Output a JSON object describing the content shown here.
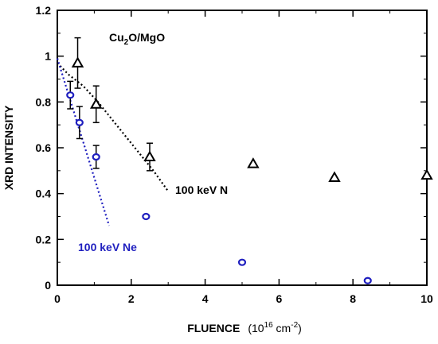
{
  "chart_data": {
    "type": "scatter",
    "title": "",
    "xlabel": "FLUENCE",
    "xlabel_unit_prefix": "(10",
    "xlabel_unit_exp1": "16",
    "xlabel_unit_mid": " cm",
    "xlabel_unit_exp2": "-2",
    "xlabel_unit_suffix": ")",
    "ylabel": "XRD INTENSITY",
    "xlim": [
      0,
      10
    ],
    "ylim": [
      0,
      1.2
    ],
    "x_ticks": [
      "0",
      "2",
      "4",
      "6",
      "8",
      "10"
    ],
    "y_ticks": [
      "0",
      "0.2",
      "0.4",
      "0.6",
      "0.8",
      "1",
      "1.2"
    ],
    "grid": false,
    "sample_label": {
      "main": "Cu",
      "sub": "2",
      "rest": "O/MgO"
    },
    "series": [
      {
        "name": "100 keV N",
        "marker": "triangle",
        "color": "#000000",
        "points": [
          {
            "x": 0.55,
            "y": 0.97,
            "err": 0.11
          },
          {
            "x": 1.05,
            "y": 0.79,
            "err": 0.08
          },
          {
            "x": 2.5,
            "y": 0.56,
            "err": 0.06
          },
          {
            "x": 5.3,
            "y": 0.53
          },
          {
            "x": 7.5,
            "y": 0.47
          },
          {
            "x": 10.0,
            "y": 0.48
          }
        ],
        "fit_line": [
          [
            0.0,
            0.97
          ],
          [
            0.3,
            0.92
          ],
          [
            0.7,
            0.87
          ],
          [
            1.1,
            0.8
          ],
          [
            1.6,
            0.7
          ],
          [
            2.1,
            0.6
          ],
          [
            2.6,
            0.5
          ],
          [
            3.0,
            0.41
          ]
        ]
      },
      {
        "name": "100 keV Ne",
        "marker": "circle",
        "color": "#1f1fbf",
        "points": [
          {
            "x": 0.35,
            "y": 0.83,
            "err": 0.06
          },
          {
            "x": 0.6,
            "y": 0.71,
            "err": 0.07
          },
          {
            "x": 1.05,
            "y": 0.56,
            "err": 0.05
          },
          {
            "x": 2.4,
            "y": 0.3
          },
          {
            "x": 5.0,
            "y": 0.1
          },
          {
            "x": 8.4,
            "y": 0.02
          }
        ],
        "fit_line": [
          [
            0.0,
            0.99
          ],
          [
            1.4,
            0.26
          ]
        ]
      }
    ]
  }
}
